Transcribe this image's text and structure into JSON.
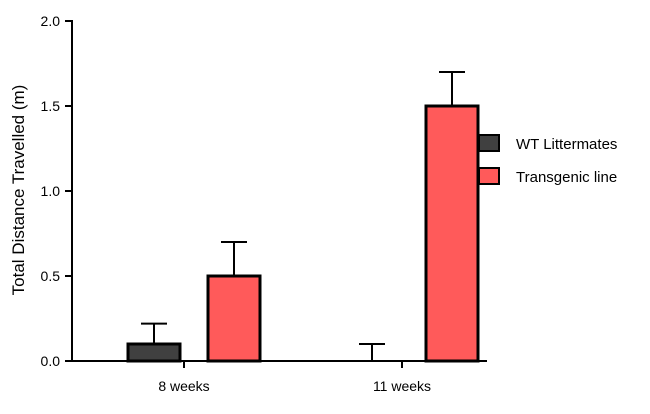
{
  "chart_data": {
    "type": "bar",
    "title": "",
    "xlabel": "",
    "ylabel": "Total Distance Travelled (m)",
    "ylim": [
      0,
      2.0
    ],
    "yticks": [
      "0.0",
      "0.5",
      "1.0",
      "1.5",
      "2.0"
    ],
    "categories": [
      "8 weeks",
      "11 weeks"
    ],
    "series": [
      {
        "name": "WT Littermates",
        "values": [
          0.1,
          0.0
        ],
        "errors": [
          0.12,
          0.1
        ],
        "color": "#404040"
      },
      {
        "name": "Transgenic line",
        "values": [
          0.5,
          1.5
        ],
        "errors": [
          0.2,
          0.2
        ],
        "color": "#ff5a5a"
      }
    ],
    "legend_position": "right",
    "grid": false
  }
}
